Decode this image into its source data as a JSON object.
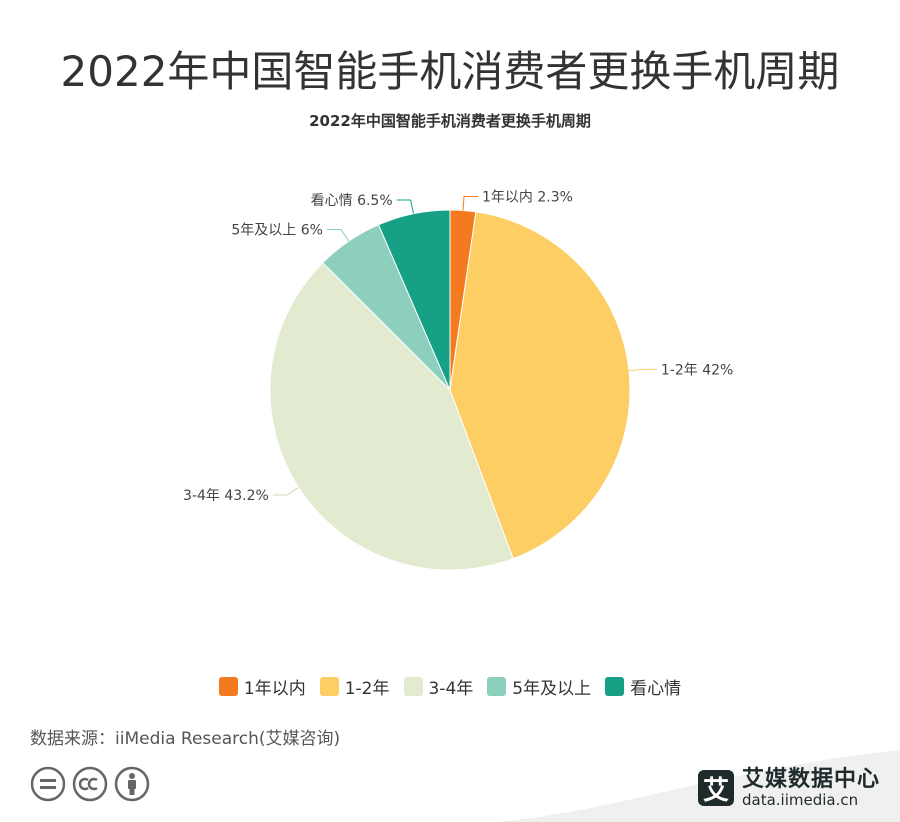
{
  "header": {
    "page_title": "2022年中国智能手机消费者更换手机周期"
  },
  "chart_data": {
    "type": "pie",
    "title": "2022年中国智能手机消费者更换手机周期",
    "categories": [
      "1年以内",
      "1-2年",
      "3-4年",
      "5年及以上",
      "看心情"
    ],
    "values": [
      2.3,
      42,
      43.2,
      6,
      6.5
    ],
    "value_labels": [
      "1年以内 2.3%",
      "1-2年 42%",
      "3-4年 43.2%",
      "5年及以上 6%",
      "看心情 6.5%"
    ],
    "colors": [
      "#f47a20",
      "#fcce63",
      "#e2ead0",
      "#8ccfbd",
      "#16a086"
    ],
    "legend_position": "bottom",
    "unit": "%"
  },
  "footer": {
    "source": "数据来源：iiMedia Research(艾媒咨询)",
    "brand_logo": "艾",
    "brand_name": "艾媒数据中心",
    "brand_url": "data.iimedia.cn",
    "cc_icons": [
      "equals-icon",
      "cc-icon",
      "person-icon"
    ],
    "band_color": "#f0f0f0"
  }
}
